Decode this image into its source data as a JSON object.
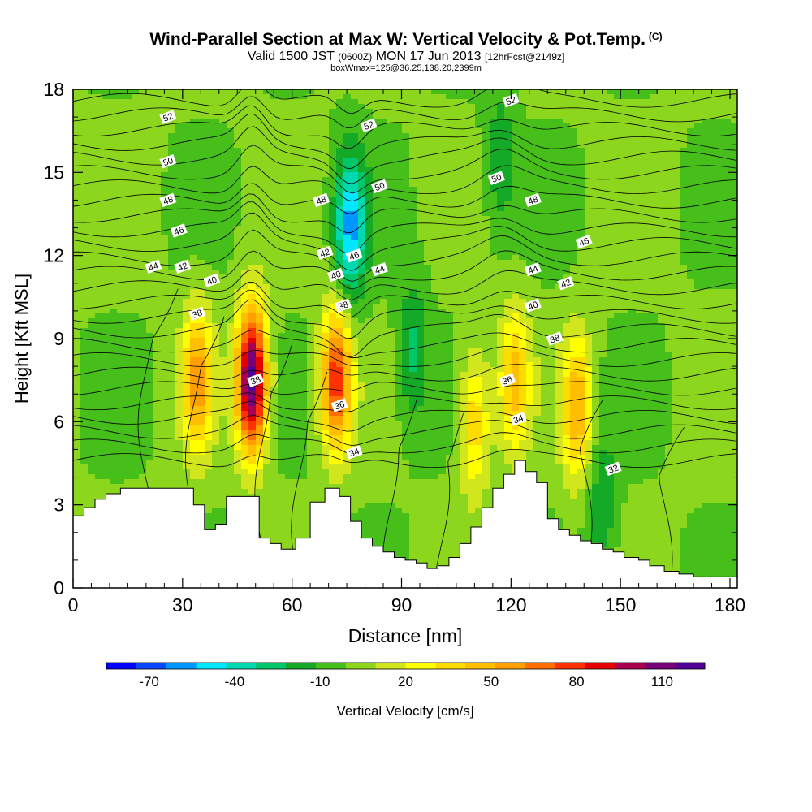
{
  "title": {
    "main": "Wind-Parallel Section at Max W: Vertical Velocity & Pot.Temp.",
    "mark": "(C)",
    "valid_a": "Valid 1500 JST",
    "valid_b": "(0600Z)",
    "valid_c": "MON 17 Jun 2013",
    "valid_d": "[12hrFcst@2149z]",
    "box": "boxWmax=125@36.25,138.20,2399m"
  },
  "chart_data": {
    "type": "heatmap",
    "xlabel": "Distance [nm]",
    "ylabel": "Height [Kft MSL]",
    "xlim": [
      0,
      182
    ],
    "ylim": [
      0,
      18
    ],
    "x_ticks": [
      "0",
      "30",
      "60",
      "90",
      "120",
      "150",
      "180"
    ],
    "x_tick_values": [
      0,
      30,
      60,
      90,
      120,
      150,
      180
    ],
    "y_ticks": [
      "0",
      "3",
      "6",
      "9",
      "12",
      "15",
      "18"
    ],
    "y_tick_values": [
      0,
      3,
      6,
      9,
      12,
      15,
      18
    ],
    "colorbar": {
      "label": "Vertical Velocity [cm/s]",
      "tick_labels": [
        "-70",
        "-40",
        "-10",
        "20",
        "50",
        "80",
        "110"
      ],
      "tick_values": [
        -70,
        -40,
        -10,
        20,
        50,
        80,
        110
      ],
      "colors": [
        "#0000ff",
        "#0a46ff",
        "#0096ff",
        "#00e6ff",
        "#00d9b0",
        "#00c86a",
        "#14aa28",
        "#46bf1a",
        "#8cd61e",
        "#d2e61e",
        "#ffff00",
        "#ffdc00",
        "#ffbe00",
        "#ffa000",
        "#ff6e00",
        "#ff3200",
        "#e60000",
        "#aa0050",
        "#780078",
        "#500096"
      ]
    },
    "vertical_velocity_features": [
      {
        "x": 34,
        "y": 7.5,
        "value": 55
      },
      {
        "x": 49,
        "y": 7.5,
        "value": 120
      },
      {
        "x": 72,
        "y": 7.5,
        "value": 80
      },
      {
        "x": 110,
        "y": 6.0,
        "value": 40
      },
      {
        "x": 121,
        "y": 7.5,
        "value": 45
      },
      {
        "x": 138,
        "y": 6.5,
        "value": 50
      },
      {
        "x": 76,
        "y": 13.0,
        "value": -55
      },
      {
        "x": 93,
        "y": 8.5,
        "value": -25
      },
      {
        "x": 117,
        "y": 15.5,
        "value": -20
      },
      {
        "x": 145,
        "y": 3.0,
        "value": -20
      }
    ],
    "theta_contour_labels": [
      {
        "value": "52",
        "x": 26,
        "y": 17.0
      },
      {
        "value": "52",
        "x": 81,
        "y": 16.7
      },
      {
        "value": "52",
        "x": 120,
        "y": 17.6
      },
      {
        "value": "50",
        "x": 26,
        "y": 15.4
      },
      {
        "value": "50",
        "x": 84,
        "y": 14.5
      },
      {
        "value": "50",
        "x": 116,
        "y": 14.8
      },
      {
        "value": "48",
        "x": 26,
        "y": 14.0
      },
      {
        "value": "48",
        "x": 68,
        "y": 14.0
      },
      {
        "value": "48",
        "x": 126,
        "y": 14.0
      },
      {
        "value": "46",
        "x": 29,
        "y": 12.9
      },
      {
        "value": "46",
        "x": 77,
        "y": 12.0
      },
      {
        "value": "46",
        "x": 140,
        "y": 12.5
      },
      {
        "value": "44",
        "x": 22,
        "y": 11.6
      },
      {
        "value": "44",
        "x": 84,
        "y": 11.5
      },
      {
        "value": "44",
        "x": 126,
        "y": 11.5
      },
      {
        "value": "42",
        "x": 30,
        "y": 11.6
      },
      {
        "value": "42",
        "x": 69,
        "y": 12.1
      },
      {
        "value": "42",
        "x": 135,
        "y": 11.0
      },
      {
        "value": "40",
        "x": 38,
        "y": 11.1
      },
      {
        "value": "40",
        "x": 72,
        "y": 11.3
      },
      {
        "value": "40",
        "x": 126,
        "y": 10.2
      },
      {
        "value": "38",
        "x": 34,
        "y": 9.9
      },
      {
        "value": "38",
        "x": 74,
        "y": 10.2
      },
      {
        "value": "38",
        "x": 132,
        "y": 9.0
      },
      {
        "value": "38",
        "x": 50,
        "y": 7.5
      },
      {
        "value": "36",
        "x": 73,
        "y": 6.6
      },
      {
        "value": "36",
        "x": 119,
        "y": 7.5
      },
      {
        "value": "34",
        "x": 77,
        "y": 4.9
      },
      {
        "value": "34",
        "x": 122,
        "y": 6.1
      },
      {
        "value": "32",
        "x": 148,
        "y": 4.3
      }
    ],
    "terrain": {
      "x": [
        0,
        3,
        6,
        9,
        13,
        30,
        33,
        36,
        39,
        42,
        49,
        51,
        54,
        57,
        61,
        65,
        69,
        73,
        76,
        79,
        82,
        85,
        88,
        91,
        94,
        97,
        100,
        103,
        106,
        109,
        112,
        115,
        118,
        121,
        124,
        127,
        130,
        133,
        136,
        139,
        142,
        145,
        148,
        151,
        155,
        158,
        162,
        166,
        170,
        182
      ],
      "height": [
        2.6,
        2.9,
        3.2,
        3.4,
        3.6,
        3.6,
        3.0,
        2.1,
        2.3,
        3.3,
        3.3,
        1.8,
        1.6,
        1.4,
        1.8,
        3.1,
        3.6,
        3.3,
        2.4,
        1.8,
        1.5,
        1.3,
        1.1,
        1.0,
        0.9,
        0.7,
        0.8,
        1.1,
        1.6,
        2.2,
        2.9,
        3.6,
        4.1,
        4.6,
        4.2,
        3.8,
        2.5,
        2.1,
        1.9,
        1.7,
        1.6,
        1.4,
        1.3,
        1.1,
        1.0,
        0.8,
        0.6,
        0.5,
        0.4,
        0.4
      ]
    }
  }
}
